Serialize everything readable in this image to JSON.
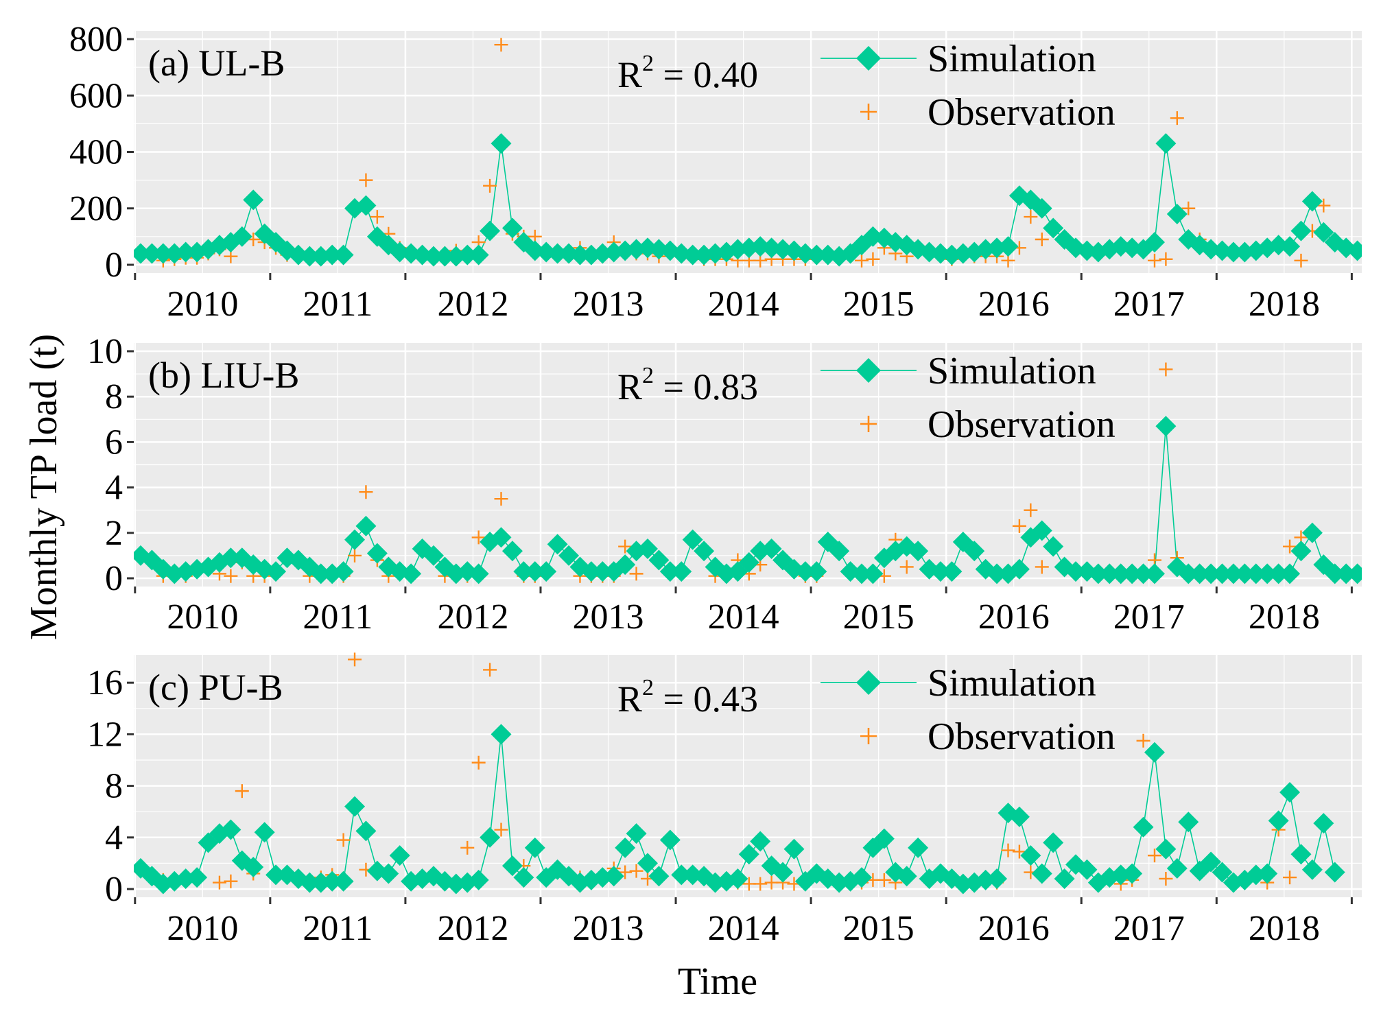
{
  "chart_data": {
    "type": "line",
    "ylabel": "Monthly TP load (t)",
    "xlabel": "Time",
    "x_ticks": [
      "2010",
      "2011",
      "2012",
      "2013",
      "2014",
      "2015",
      "2016",
      "2017",
      "2018"
    ],
    "x_range_months": [
      0,
      108
    ],
    "series_names": [
      "Simulation",
      "Observation"
    ],
    "colors": {
      "simulation": "#00CC96",
      "observation": "#FF8C1A",
      "panel_bg": "#EBEBEB",
      "grid": "#FFFFFF"
    },
    "panels": [
      {
        "panel_label": "(a) UL-B",
        "r2_text": "R",
        "r2_sup": "2",
        "r2_value": " = 0.40",
        "ylim": [
          0,
          800
        ],
        "yticks": [
          0,
          200,
          400,
          600,
          800
        ],
        "ytick_labels": [
          "0",
          "200",
          "400",
          "600",
          "800"
        ],
        "simulation": [
          40,
          40,
          40,
          40,
          45,
          45,
          55,
          70,
          80,
          100,
          230,
          110,
          80,
          50,
          35,
          30,
          30,
          35,
          35,
          200,
          210,
          100,
          70,
          45,
          40,
          35,
          30,
          30,
          30,
          35,
          35,
          120,
          430,
          130,
          80,
          50,
          45,
          40,
          40,
          35,
          35,
          40,
          45,
          50,
          55,
          60,
          55,
          50,
          40,
          35,
          35,
          40,
          45,
          55,
          60,
          65,
          60,
          55,
          50,
          40,
          35,
          35,
          30,
          40,
          70,
          100,
          95,
          80,
          70,
          55,
          45,
          40,
          35,
          40,
          45,
          55,
          60,
          65,
          245,
          230,
          200,
          130,
          90,
          60,
          50,
          45,
          55,
          65,
          60,
          55,
          80,
          430,
          180,
          90,
          70,
          55,
          50,
          45,
          45,
          50,
          60,
          70,
          65,
          120,
          225,
          115,
          80,
          60,
          50
        ],
        "observation": [
          null,
          null,
          15,
          20,
          25,
          25,
          40,
          55,
          30,
          null,
          90,
          80,
          60,
          35,
          null,
          null,
          30,
          30,
          30,
          210,
          300,
          170,
          110,
          60,
          null,
          null,
          null,
          40,
          50,
          30,
          80,
          280,
          780,
          110,
          100,
          100,
          50,
          50,
          30,
          60,
          30,
          30,
          80,
          45,
          40,
          40,
          30,
          null,
          null,
          null,
          20,
          20,
          20,
          15,
          15,
          15,
          20,
          20,
          20,
          20,
          null,
          null,
          null,
          null,
          15,
          20,
          60,
          40,
          30,
          null,
          null,
          null,
          20,
          30,
          30,
          30,
          30,
          15,
          60,
          170,
          90,
          null,
          null,
          null,
          null,
          null,
          null,
          null,
          null,
          null,
          15,
          20,
          520,
          200,
          90,
          null,
          null,
          null,
          null,
          null,
          null,
          null,
          null,
          15,
          120,
          210,
          null,
          null,
          null
        ]
      },
      {
        "panel_label": "(b) LIU-B",
        "r2_text": "R",
        "r2_sup": "2",
        "r2_value": " = 0.83",
        "ylim": [
          0,
          10
        ],
        "yticks": [
          0,
          2,
          4,
          6,
          8,
          10
        ],
        "ytick_labels": [
          "0",
          "2",
          "4",
          "6",
          "8",
          "10"
        ],
        "simulation": [
          1.0,
          0.8,
          0.4,
          0.2,
          0.3,
          0.4,
          0.5,
          0.7,
          0.9,
          0.9,
          0.6,
          0.4,
          0.3,
          0.9,
          0.8,
          0.5,
          0.2,
          0.2,
          0.3,
          1.7,
          2.3,
          1.1,
          0.5,
          0.3,
          0.2,
          1.3,
          1.0,
          0.5,
          0.2,
          0.3,
          0.2,
          1.6,
          1.8,
          1.2,
          0.3,
          0.3,
          0.3,
          1.5,
          1.0,
          0.5,
          0.3,
          0.3,
          0.3,
          0.6,
          1.2,
          1.3,
          0.8,
          0.3,
          0.3,
          1.7,
          1.2,
          0.5,
          0.2,
          0.3,
          0.7,
          1.2,
          1.3,
          0.8,
          0.4,
          0.3,
          0.3,
          1.6,
          1.2,
          0.3,
          0.2,
          0.2,
          0.9,
          1.2,
          1.4,
          1.2,
          0.4,
          0.3,
          0.3,
          1.6,
          1.2,
          0.4,
          0.2,
          0.2,
          0.4,
          1.8,
          2.1,
          1.4,
          0.5,
          0.3,
          0.3,
          0.2,
          0.2,
          0.2,
          0.2,
          0.2,
          0.2,
          6.7,
          0.5,
          0.2,
          0.2,
          0.2,
          0.2,
          0.2,
          0.2,
          0.2,
          0.2,
          0.2,
          0.2,
          1.2,
          2.0,
          0.6,
          0.2,
          0.2,
          0.2
        ],
        "observation": [
          null,
          null,
          0.1,
          0.1,
          0.1,
          null,
          null,
          0.2,
          0.1,
          0.7,
          0.1,
          0.1,
          null,
          null,
          null,
          0.1,
          0.1,
          0.1,
          0.1,
          1.0,
          3.8,
          0.8,
          0.1,
          null,
          null,
          null,
          null,
          0.1,
          0.1,
          0.1,
          1.8,
          1.5,
          3.5,
          null,
          0.1,
          0.1,
          null,
          null,
          null,
          0.1,
          0.1,
          0.1,
          0.1,
          1.4,
          0.2,
          null,
          null,
          null,
          null,
          null,
          null,
          0.1,
          0.1,
          0.8,
          0.2,
          0.6,
          null,
          null,
          null,
          0.1,
          0.1,
          null,
          null,
          null,
          null,
          0.1,
          0.1,
          1.7,
          0.5,
          null,
          null,
          null,
          null,
          null,
          null,
          null,
          null,
          null,
          2.3,
          3.0,
          0.5,
          null,
          null,
          null,
          null,
          null,
          null,
          null,
          null,
          0.1,
          0.8,
          9.2,
          0.9,
          null,
          null,
          null,
          null,
          null,
          null,
          null,
          null,
          0.1,
          1.4,
          1.8,
          null,
          null,
          null
        ]
      },
      {
        "panel_label": "(c) PU-B",
        "r2_text": "R",
        "r2_sup": "2",
        "r2_value": " = 0.43",
        "ylim": [
          0,
          17.5
        ],
        "yticks": [
          0,
          4,
          8,
          12,
          16
        ],
        "ytick_labels": [
          "0",
          "4",
          "8",
          "12",
          "16"
        ],
        "simulation": [
          1.6,
          1.0,
          0.4,
          0.6,
          0.8,
          0.9,
          3.6,
          4.3,
          4.6,
          2.2,
          1.7,
          4.4,
          1.1,
          1.1,
          0.8,
          0.5,
          0.5,
          0.6,
          0.6,
          6.4,
          4.5,
          1.4,
          1.2,
          2.6,
          0.6,
          0.8,
          1.0,
          0.6,
          0.4,
          0.5,
          0.7,
          4.0,
          12.0,
          1.8,
          0.9,
          3.2,
          0.9,
          1.5,
          1.0,
          0.5,
          0.7,
          0.9,
          1.0,
          3.2,
          4.3,
          2.0,
          1.0,
          3.8,
          1.1,
          1.1,
          1.0,
          0.5,
          0.6,
          0.8,
          2.7,
          3.7,
          1.8,
          1.3,
          3.1,
          0.6,
          1.2,
          0.8,
          0.5,
          0.6,
          0.9,
          3.2,
          3.9,
          1.3,
          1.0,
          3.2,
          0.8,
          1.2,
          0.8,
          0.4,
          0.5,
          0.7,
          0.8,
          5.9,
          5.6,
          2.6,
          1.2,
          3.6,
          0.8,
          1.9,
          1.5,
          0.5,
          0.9,
          1.1,
          1.2,
          4.8,
          10.6,
          3.1,
          1.6,
          5.2,
          1.4,
          2.1,
          1.3,
          0.5,
          0.7,
          1.1,
          1.2,
          5.3,
          7.5,
          2.7,
          1.5,
          5.1,
          1.3,
          null,
          null
        ],
        "observation": [
          null,
          null,
          0.7,
          0.7,
          0.7,
          null,
          null,
          0.5,
          0.6,
          7.6,
          1.2,
          null,
          null,
          null,
          null,
          0.6,
          0.9,
          1.1,
          3.8,
          17.8,
          1.5,
          1.3,
          1.0,
          null,
          null,
          null,
          null,
          0.4,
          0.5,
          3.2,
          9.8,
          17.0,
          4.6,
          2.0,
          1.8,
          null,
          null,
          null,
          null,
          0.9,
          0.9,
          0.8,
          1.6,
          1.3,
          1.4,
          0.8,
          null,
          null,
          null,
          null,
          null,
          0.4,
          0.4,
          0.5,
          0.4,
          0.4,
          0.5,
          0.5,
          0.4,
          null,
          null,
          null,
          null,
          null,
          0.5,
          0.7,
          0.7,
          0.5,
          null,
          null,
          null,
          null,
          null,
          null,
          null,
          null,
          0.5,
          3.0,
          2.9,
          1.3,
          null,
          null,
          null,
          null,
          null,
          null,
          null,
          0.4,
          0.7,
          11.5,
          2.6,
          0.8,
          null,
          null,
          null,
          null,
          null,
          null,
          null,
          null,
          0.5,
          4.6,
          0.9,
          null,
          null,
          null,
          null,
          null
        ]
      }
    ]
  }
}
